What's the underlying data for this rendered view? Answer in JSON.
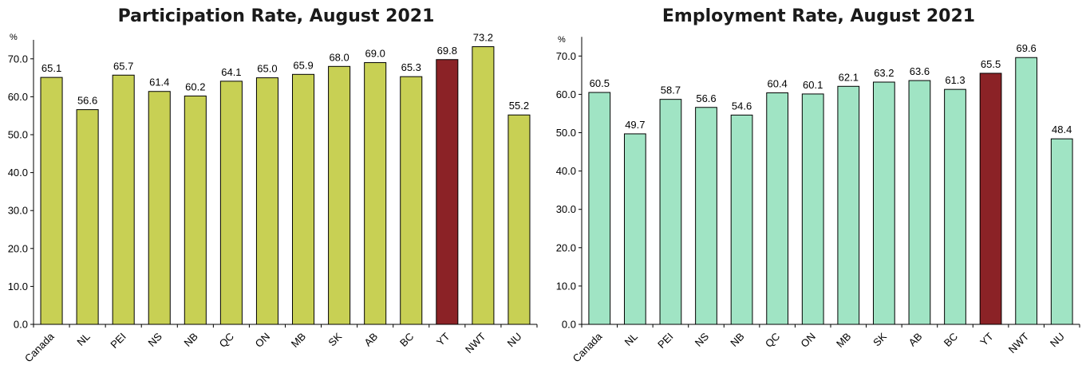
{
  "colors": {
    "participation_bar": "#c8d054",
    "employment_bar": "#a0e4c4",
    "highlight_bar": "#8b2226"
  },
  "chart_data": [
    {
      "type": "bar",
      "title": "Participation Rate, August 2021",
      "unit_label": "%",
      "categories": [
        "Canada",
        "NL",
        "PEI",
        "NS",
        "NB",
        "QC",
        "ON",
        "MB",
        "SK",
        "AB",
        "BC",
        "YT",
        "NWT",
        "NU"
      ],
      "values": [
        65.1,
        56.6,
        65.7,
        61.4,
        60.2,
        64.1,
        65.0,
        65.9,
        68.0,
        69.0,
        65.3,
        69.8,
        73.2,
        55.2
      ],
      "value_labels": [
        "65.1",
        "56.6",
        "65.7",
        "61.4",
        "60.2",
        "64.1",
        "65.0",
        "65.9",
        "68.0",
        "69.0",
        "65.3",
        "69.8",
        "73.2",
        "55.2"
      ],
      "highlight_category": "YT",
      "yticks": [
        "0.0",
        "10.0",
        "20.0",
        "30.0",
        "40.0",
        "50.0",
        "60.0",
        "70.0"
      ],
      "ylim": [
        0,
        75
      ],
      "grid": false,
      "legend": "none"
    },
    {
      "type": "bar",
      "title": "Employment Rate, August 2021",
      "unit_label": "%",
      "categories": [
        "Canada",
        "NL",
        "PEI",
        "NS",
        "NB",
        "QC",
        "ON",
        "MB",
        "SK",
        "AB",
        "BC",
        "YT",
        "NWT",
        "NU"
      ],
      "values": [
        60.5,
        49.7,
        58.7,
        56.6,
        54.6,
        60.4,
        60.1,
        62.1,
        63.2,
        63.6,
        61.3,
        65.5,
        69.6,
        48.4
      ],
      "value_labels": [
        "60.5",
        "49.7",
        "58.7",
        "56.6",
        "54.6",
        "60.4",
        "60.1",
        "62.1",
        "63.2",
        "63.6",
        "61.3",
        "65.5",
        "69.6",
        "48.4"
      ],
      "highlight_category": "YT",
      "yticks": [
        "0.0",
        "10.0",
        "20.0",
        "30.0",
        "40.0",
        "50.0",
        "60.0",
        "70.0"
      ],
      "ylim": [
        0,
        75
      ],
      "grid": false,
      "legend": "none"
    }
  ]
}
